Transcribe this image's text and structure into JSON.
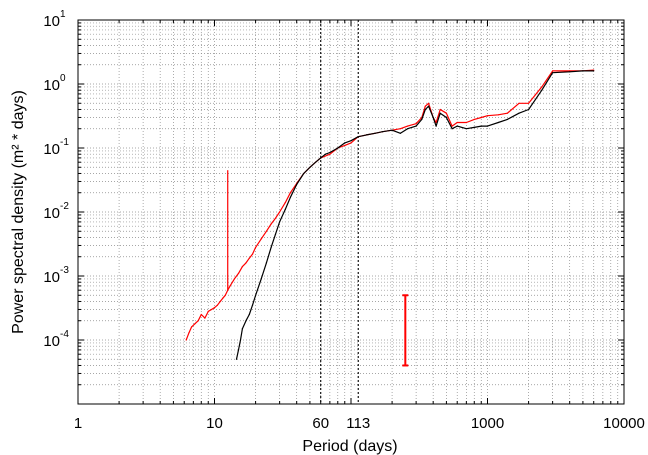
{
  "chart_data": {
    "type": "line",
    "title": "",
    "xlabel": "Period (days)",
    "ylabel": "Power spectral density (m² * days)",
    "xscale": "log",
    "yscale": "log",
    "xlim": [
      1,
      10000
    ],
    "ylim": [
      1e-05,
      10
    ],
    "grid": true,
    "x_ticks": [
      {
        "value": 1,
        "label": "1"
      },
      {
        "value": 10,
        "label": "10"
      },
      {
        "value": 60,
        "label": "60"
      },
      {
        "value": 113,
        "label": "113"
      },
      {
        "value": 1000,
        "label": "1000"
      },
      {
        "value": 10000,
        "label": "10000"
      }
    ],
    "y_ticks": [
      {
        "value": 10,
        "base": "10",
        "exp": "1"
      },
      {
        "value": 1,
        "base": "10",
        "exp": "0"
      },
      {
        "value": 0.1,
        "base": "10",
        "exp": "-1"
      },
      {
        "value": 0.01,
        "base": "10",
        "exp": "-2"
      },
      {
        "value": 0.001,
        "base": "10",
        "exp": "-3"
      },
      {
        "value": 0.0001,
        "base": "10",
        "exp": "-4"
      }
    ],
    "reference_lines_x": [
      60,
      113
    ],
    "series": [
      {
        "color": "#ff0000",
        "x": [
          6.2,
          6.5,
          6.8,
          7.2,
          7.6,
          8.0,
          8.5,
          9.0,
          9.5,
          10.0,
          10.5,
          11.0,
          11.5,
          12.0,
          12.5,
          13.0,
          14.0,
          15.0,
          16.0,
          17.0,
          18.0,
          19.0,
          20.0,
          22.0,
          24.0,
          26.0,
          28.0,
          30.0,
          33.0,
          36.0,
          40.0,
          45.0,
          50.0,
          55.0,
          60.0,
          65.0,
          70.0,
          80.0,
          90.0,
          100.0,
          113.0,
          130.0,
          150.0,
          170.0,
          200.0,
          230.0,
          260.0,
          300.0,
          330.0,
          350.0,
          370.0,
          400.0,
          420.0,
          450.0,
          500.0,
          550.0,
          600.0,
          700.0,
          800.0,
          900.0,
          1000.0,
          1200.0,
          1400.0,
          1700.0,
          2000.0,
          2500.0,
          3000.0,
          4000.0,
          5000.0,
          6000.0
        ],
        "y": [
          0.0001,
          0.00013,
          0.00016,
          0.00018,
          0.0002,
          0.00025,
          0.00022,
          0.00028,
          0.0003,
          0.00032,
          0.00035,
          0.0004,
          0.00045,
          0.0005,
          0.0006,
          0.0007,
          0.0009,
          0.0011,
          0.0014,
          0.0016,
          0.0019,
          0.0022,
          0.0028,
          0.0038,
          0.005,
          0.0065,
          0.008,
          0.01,
          0.014,
          0.02,
          0.028,
          0.04,
          0.05,
          0.06,
          0.07,
          0.075,
          0.08,
          0.1,
          0.11,
          0.12,
          0.15,
          0.16,
          0.17,
          0.18,
          0.19,
          0.2,
          0.22,
          0.24,
          0.3,
          0.45,
          0.5,
          0.3,
          0.25,
          0.4,
          0.35,
          0.22,
          0.25,
          0.25,
          0.28,
          0.3,
          0.32,
          0.33,
          0.35,
          0.5,
          0.5,
          0.9,
          1.6,
          1.6,
          1.6,
          1.65
        ],
        "spikes": [
          {
            "x": 12.5,
            "y": 0.045
          }
        ]
      },
      {
        "color": "#000000",
        "x": [
          14.5,
          15.0,
          15.5,
          16.0,
          17.0,
          18.0,
          19.0,
          20.0,
          22.0,
          24.0,
          26.0,
          28.0,
          30.0,
          33.0,
          36.0,
          40.0,
          45.0,
          50.0,
          55.0,
          60.0,
          65.0,
          70.0,
          80.0,
          90.0,
          100.0,
          113.0,
          130.0,
          150.0,
          170.0,
          200.0,
          230.0,
          260.0,
          300.0,
          330.0,
          350.0,
          370.0,
          400.0,
          420.0,
          450.0,
          500.0,
          550.0,
          600.0,
          700.0,
          800.0,
          900.0,
          1000.0,
          1200.0,
          1400.0,
          1700.0,
          2000.0,
          2500.0,
          3000.0,
          4000.0,
          5000.0,
          6000.0
        ],
        "y": [
          5e-05,
          7e-05,
          0.0001,
          0.00015,
          0.0002,
          0.00025,
          0.00035,
          0.0005,
          0.0009,
          0.0016,
          0.0028,
          0.0045,
          0.007,
          0.011,
          0.017,
          0.027,
          0.04,
          0.05,
          0.06,
          0.07,
          0.08,
          0.085,
          0.1,
          0.12,
          0.13,
          0.15,
          0.16,
          0.17,
          0.18,
          0.19,
          0.17,
          0.2,
          0.22,
          0.28,
          0.4,
          0.45,
          0.3,
          0.22,
          0.35,
          0.3,
          0.2,
          0.22,
          0.2,
          0.21,
          0.22,
          0.22,
          0.25,
          0.28,
          0.35,
          0.4,
          0.8,
          1.5,
          1.55,
          1.6,
          1.6
        ]
      }
    ],
    "error_bar": {
      "color": "#ff0000",
      "x": 250,
      "y_low": 4e-05,
      "y_high": 0.0005
    }
  }
}
